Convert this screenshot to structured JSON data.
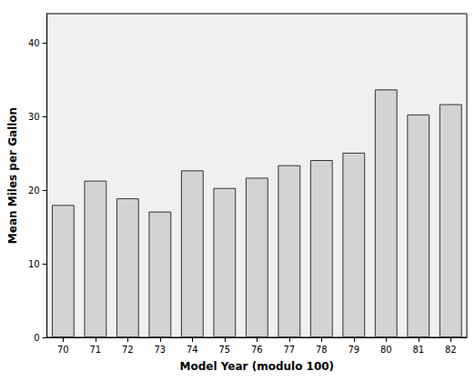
{
  "chart_data": {
    "type": "bar",
    "x_label": "Model Year (modulo 100)",
    "y_label": "Mean Miles per Gallon",
    "categories": [
      "70",
      "71",
      "72",
      "73",
      "74",
      "75",
      "76",
      "77",
      "78",
      "79",
      "80",
      "81",
      "82"
    ],
    "values": [
      18.0,
      21.3,
      18.9,
      17.1,
      22.7,
      20.3,
      21.7,
      23.4,
      24.1,
      25.1,
      33.7,
      30.3,
      31.7
    ],
    "color": "#d3d3d3",
    "ylim": [
      0,
      44
    ],
    "yticks": [
      0,
      10,
      20,
      30,
      40
    ],
    "grid": false
  }
}
